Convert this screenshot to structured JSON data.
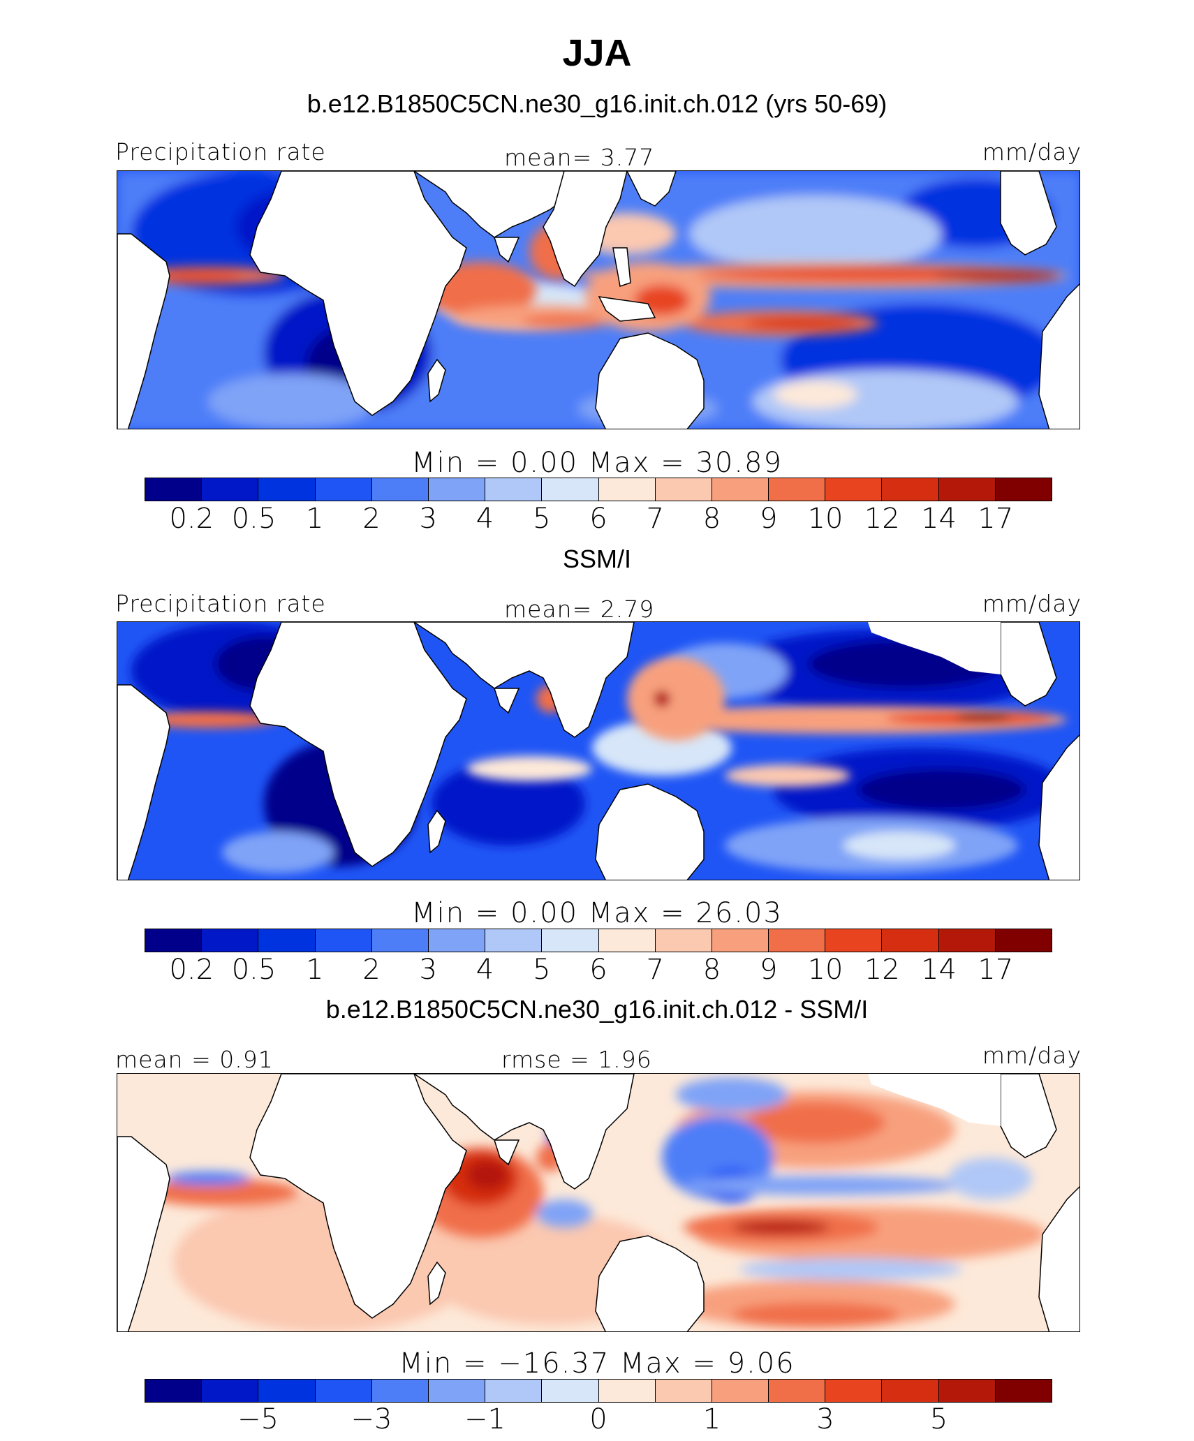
{
  "page_title": "JJA",
  "palette": [
    "#00008b",
    "#0018c8",
    "#0033e0",
    "#1f55f5",
    "#4d7ef8",
    "#7fa3f7",
    "#b0c8f7",
    "#d7e6f8",
    "#fde9d9",
    "#fbc8b0",
    "#f8a07e",
    "#f06e48",
    "#e84420",
    "#d62e10",
    "#b41808",
    "#800000"
  ],
  "land_color": "#ffffff",
  "chart_data": [
    {
      "type": "heatmap",
      "title": "b.e12.B1850C5CN.ne30_g16.init.ch.012 (yrs 50-69)",
      "left_label": "Precipitation rate",
      "center_label": "mean=    3.77",
      "units": "mm/day",
      "min_label": "Min  =      0.00",
      "max_label": "Max  =    30.89",
      "colorbar_ticks": [
        "0.2",
        "0.5",
        "1",
        "2",
        "3",
        "4",
        "5",
        "6",
        "7",
        "8",
        "9",
        "10",
        "12",
        "14",
        "17"
      ],
      "statistics": {
        "mean": 3.77,
        "min": 0.0,
        "max": 30.89
      }
    },
    {
      "type": "heatmap",
      "title": "SSM/I",
      "left_label": "Precipitation rate",
      "center_label": "mean=    2.79",
      "units": "mm/day",
      "min_label": "Min  =      0.00",
      "max_label": "Max  =    26.03",
      "colorbar_ticks": [
        "0.2",
        "0.5",
        "1",
        "2",
        "3",
        "4",
        "5",
        "6",
        "7",
        "8",
        "9",
        "10",
        "12",
        "14",
        "17"
      ],
      "statistics": {
        "mean": 2.79,
        "min": 0.0,
        "max": 26.03
      }
    },
    {
      "type": "heatmap",
      "title": "b.e12.B1850C5CN.ne30_g16.init.ch.012 - SSM/I",
      "left_label": "mean  =    0.91",
      "center_label": "rmse  =    1.96",
      "units": "mm/day",
      "min_label": "Min  = −16.37",
      "max_label": "Max  =     9.06",
      "colorbar_ticks": [
        "−5",
        "−3",
        "−1",
        "0",
        "1",
        "3",
        "5"
      ],
      "statistics": {
        "mean": 0.91,
        "rmse": 1.96,
        "min": -16.37,
        "max": 9.06
      }
    }
  ]
}
